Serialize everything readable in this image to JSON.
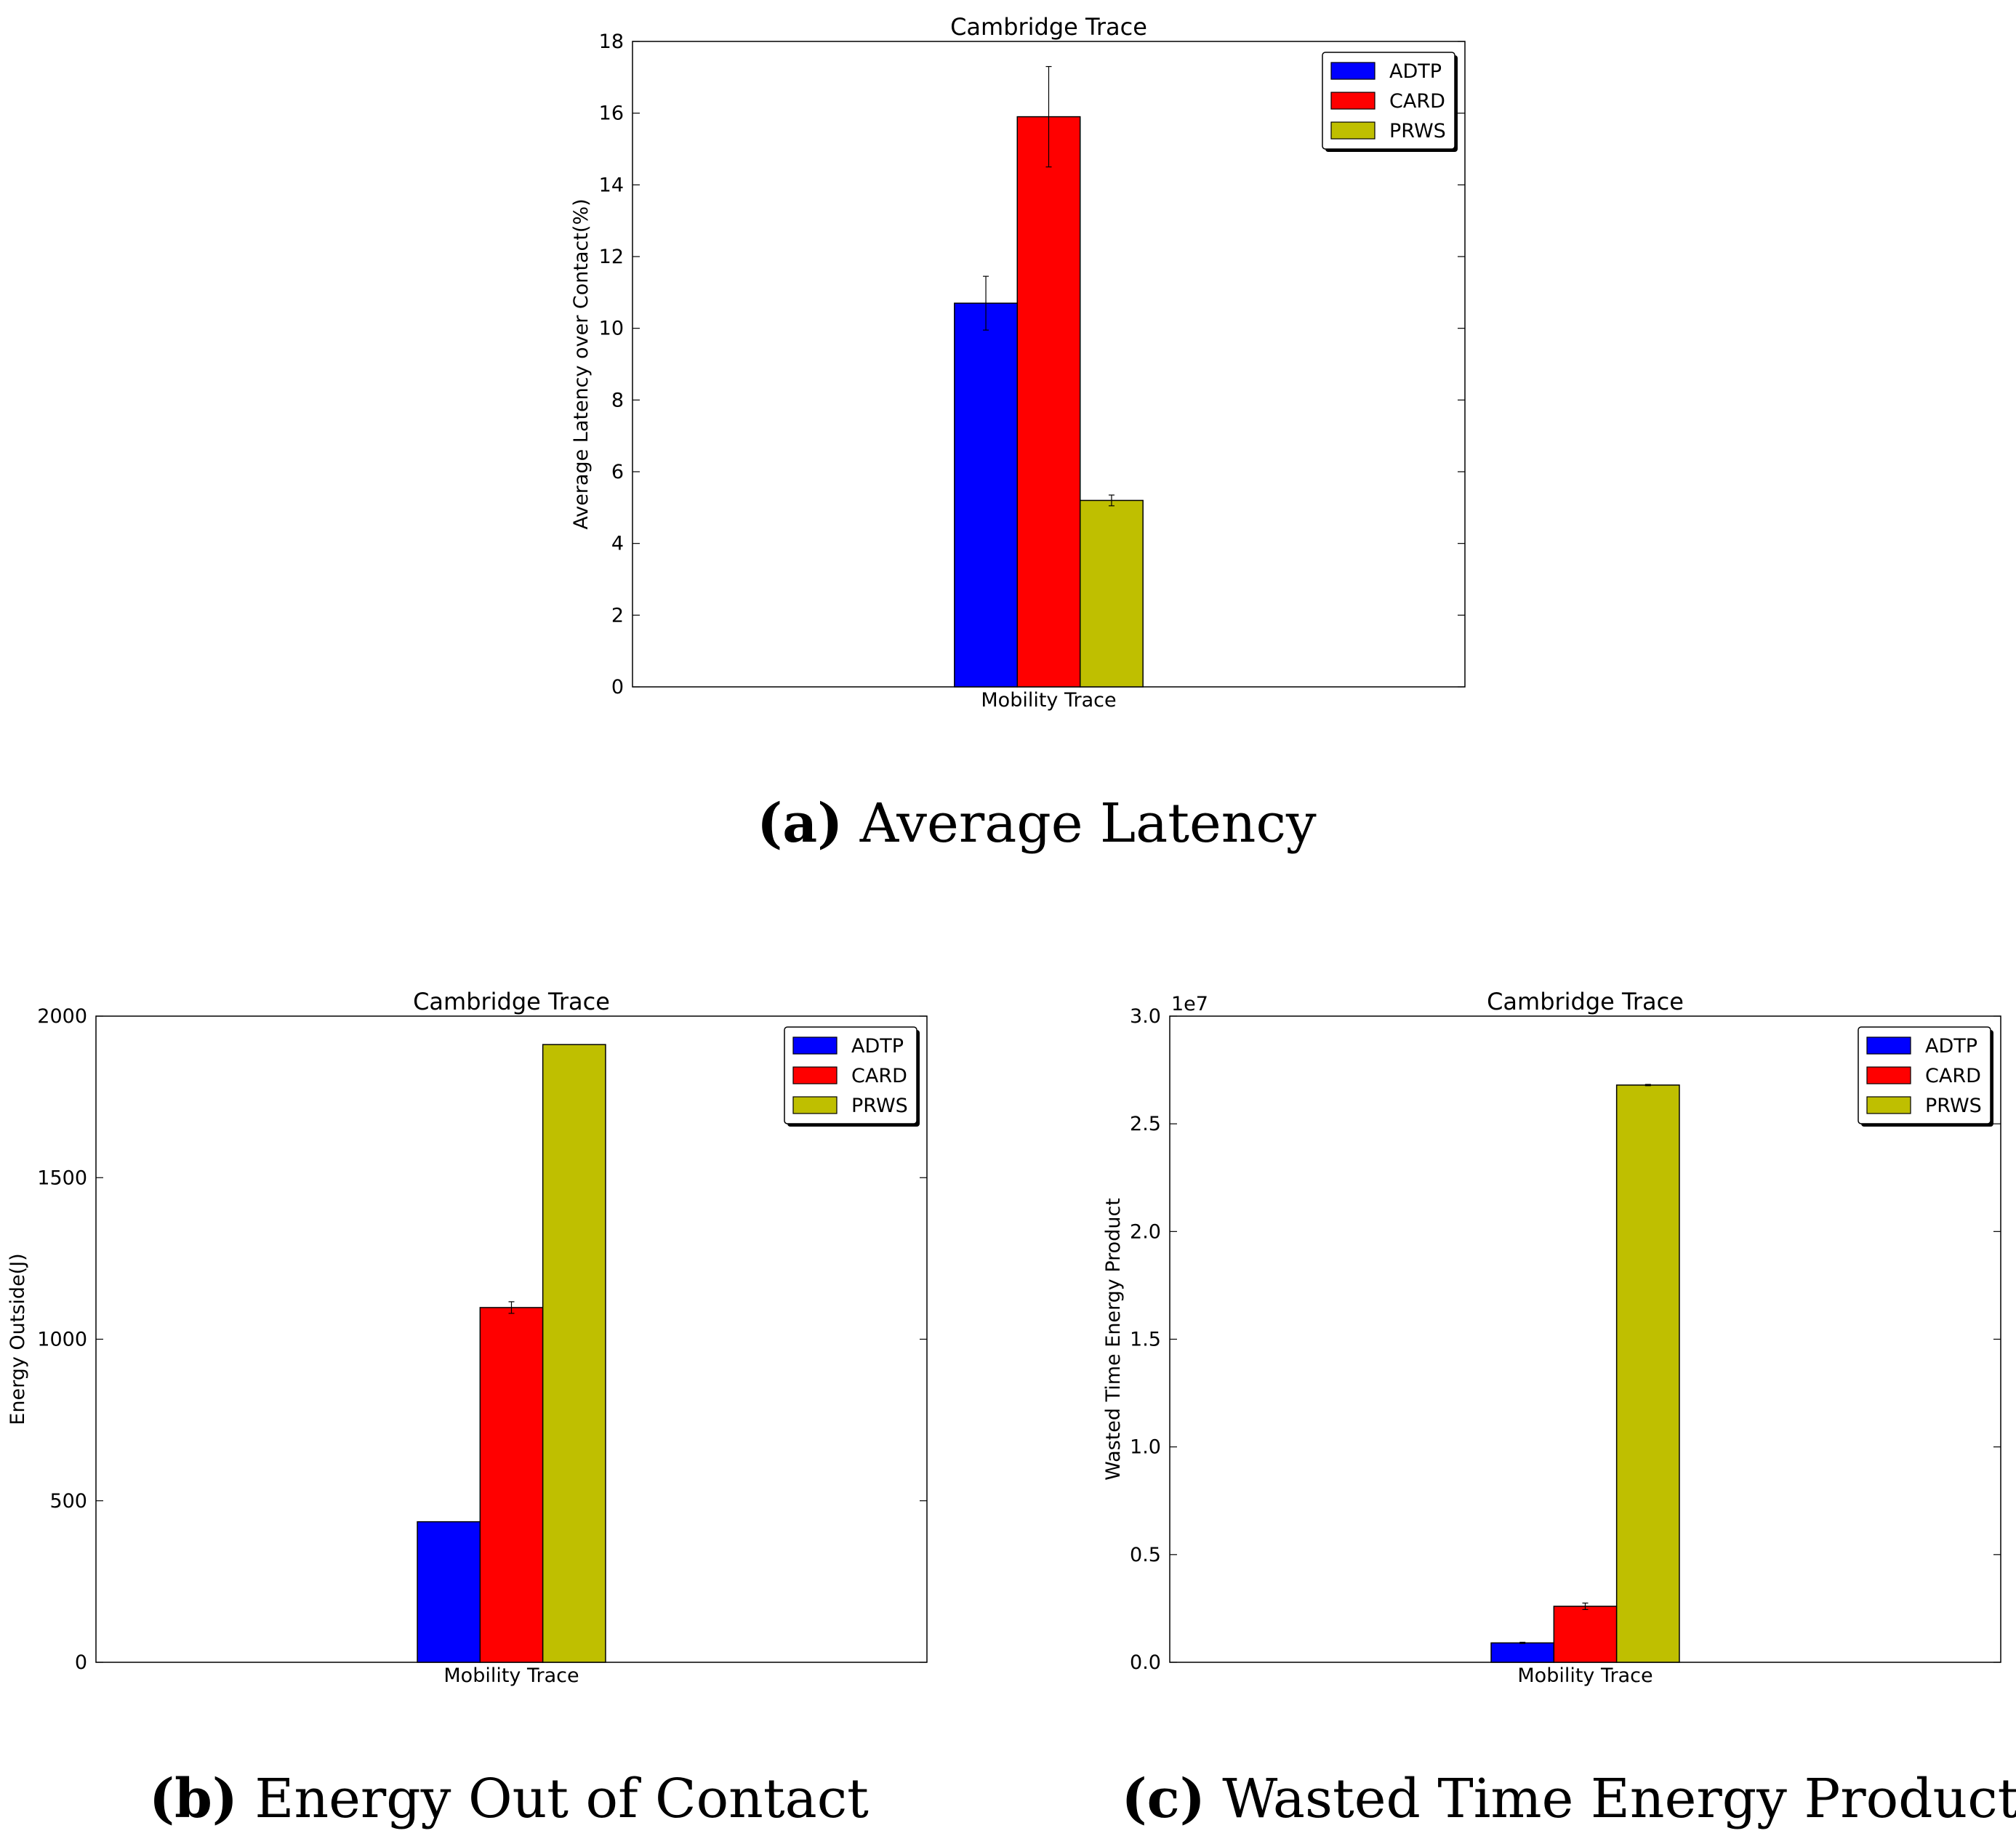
{
  "colors": {
    "ADTP": "#0000ff",
    "CARD": "#ff0000",
    "PRWS": "#bfbf00"
  },
  "captions": [
    {
      "label": "(a)",
      "text": "Average Latency"
    },
    {
      "label": "(b)",
      "text": "Energy Out of Contact"
    },
    {
      "label": "(c)",
      "text": "Wasted Time Energy Product"
    }
  ],
  "chart_data": [
    {
      "type": "bar",
      "title": "Cambridge Trace",
      "xlabel": "Mobility Trace",
      "ylabel": "Average Latency over Contact(%)",
      "categories": [
        "Mobility Trace"
      ],
      "ylim": [
        0,
        18
      ],
      "yticks": [
        0,
        2,
        4,
        6,
        8,
        10,
        12,
        14,
        16,
        18
      ],
      "ytick_labels": [
        "0",
        "2",
        "4",
        "6",
        "8",
        "10",
        "12",
        "14",
        "16",
        "18"
      ],
      "offset_label": "",
      "legend_position": "top-right",
      "series": [
        {
          "name": "ADTP",
          "values": [
            10.7
          ],
          "errors": [
            0.75
          ]
        },
        {
          "name": "CARD",
          "values": [
            15.9
          ],
          "errors": [
            1.4
          ]
        },
        {
          "name": "PRWS",
          "values": [
            5.2
          ],
          "errors": [
            0.15
          ]
        }
      ]
    },
    {
      "type": "bar",
      "title": "Cambridge Trace",
      "xlabel": "Mobility Trace",
      "ylabel": "Energy Outside(J)",
      "categories": [
        "Mobility Trace"
      ],
      "ylim": [
        0,
        2000
      ],
      "yticks": [
        0,
        500,
        1000,
        1500,
        2000
      ],
      "ytick_labels": [
        "0",
        "500",
        "1000",
        "1500",
        "2000"
      ],
      "offset_label": "",
      "legend_position": "top-right",
      "series": [
        {
          "name": "ADTP",
          "values": [
            435
          ],
          "errors": [
            0
          ]
        },
        {
          "name": "CARD",
          "values": [
            1098
          ],
          "errors": [
            18
          ]
        },
        {
          "name": "PRWS",
          "values": [
            1912
          ],
          "errors": [
            0
          ]
        }
      ]
    },
    {
      "type": "bar",
      "title": "Cambridge Trace",
      "xlabel": "Mobility Trace",
      "ylabel": "Wasted Time Energy Product",
      "categories": [
        "Mobility Trace"
      ],
      "ylim": [
        0,
        3.0
      ],
      "yticks": [
        0,
        0.5,
        1.0,
        1.5,
        2.0,
        2.5,
        3.0
      ],
      "ytick_labels": [
        "0.0",
        "0.5",
        "1.0",
        "1.5",
        "2.0",
        "2.5",
        "3.0"
      ],
      "offset_label": "1e7",
      "legend_position": "top-right",
      "series": [
        {
          "name": "ADTP",
          "values": [
            0.09
          ],
          "errors": [
            0.003
          ]
        },
        {
          "name": "CARD",
          "values": [
            0.26
          ],
          "errors": [
            0.015
          ]
        },
        {
          "name": "PRWS",
          "values": [
            2.68
          ],
          "errors": [
            0.003
          ]
        }
      ]
    }
  ]
}
